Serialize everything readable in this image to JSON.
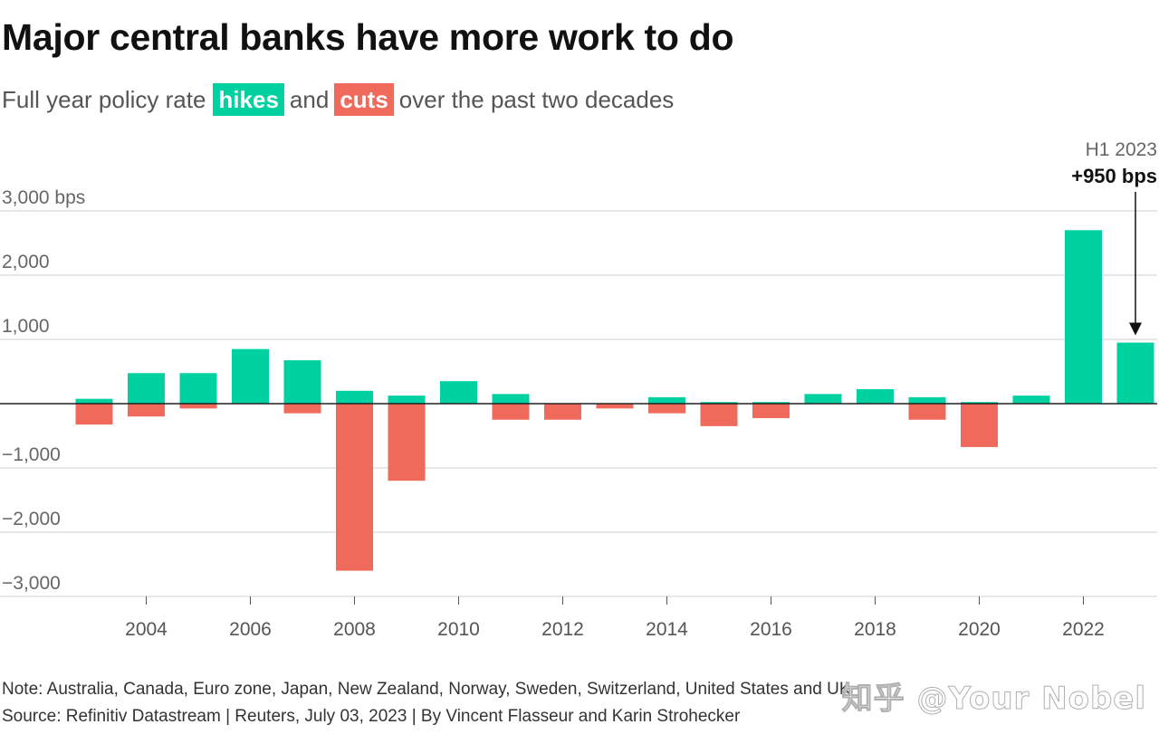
{
  "header": {
    "title": "Major central banks have more work to do",
    "subtitle_pre": "Full year policy rate",
    "hikes_label": "hikes",
    "and_label": "and",
    "cuts_label": "cuts",
    "subtitle_post": "over the past two decades"
  },
  "colors": {
    "hikes": "#00d1a0",
    "cuts": "#ef6a5a",
    "grid": "#cfcfcf",
    "axis": "#222222"
  },
  "chart_data": {
    "type": "bar",
    "stacked_diverging": true,
    "categories": [
      "2003",
      "2004",
      "2005",
      "2006",
      "2007",
      "2008",
      "2009",
      "2010",
      "2011",
      "2012",
      "2013",
      "2014",
      "2015",
      "2016",
      "2017",
      "2018",
      "2019",
      "2020",
      "2021",
      "2022",
      "H1 2023"
    ],
    "series": [
      {
        "name": "hikes",
        "values": [
          75,
          475,
          475,
          850,
          675,
          200,
          125,
          350,
          150,
          0,
          0,
          100,
          25,
          25,
          150,
          225,
          100,
          25,
          125,
          2700,
          950
        ]
      },
      {
        "name": "cuts",
        "values": [
          -325,
          -200,
          -75,
          0,
          -150,
          -2600,
          -1200,
          0,
          -250,
          -250,
          -75,
          -150,
          -350,
          -225,
          0,
          0,
          -250,
          -675,
          0,
          0,
          0
        ]
      }
    ],
    "ylim": [
      -3000,
      3000
    ],
    "yticks": [
      {
        "value": 3000,
        "label": "3,000 bps"
      },
      {
        "value": 2000,
        "label": "2,000"
      },
      {
        "value": 1000,
        "label": "1,000"
      },
      {
        "value": -1000,
        "label": "−1,000"
      },
      {
        "value": -2000,
        "label": "−2,000"
      },
      {
        "value": -3000,
        "label": "−3,000"
      }
    ],
    "xticks": [
      {
        "index": 1,
        "label": "2004"
      },
      {
        "index": 3,
        "label": "2006"
      },
      {
        "index": 5,
        "label": "2008"
      },
      {
        "index": 7,
        "label": "2010"
      },
      {
        "index": 9,
        "label": "2012"
      },
      {
        "index": 11,
        "label": "2014"
      },
      {
        "index": 13,
        "label": "2016"
      },
      {
        "index": 15,
        "label": "2018"
      },
      {
        "index": 17,
        "label": "2020"
      },
      {
        "index": 19,
        "label": "2022"
      }
    ],
    "annotation": {
      "index": 20,
      "label": "H1 2023",
      "value_label": "+950 bps"
    },
    "grid": true
  },
  "footer": {
    "note": "Note: Australia, Canada, Euro zone, Japan, New Zealand, Norway, Sweden, Switzerland, United States and UK",
    "source": "Source: Refinitiv Datastream | Reuters, July 03, 2023 | By Vincent Flasseur and Karin Strohecker"
  },
  "watermark": "知乎 @Your Nobel"
}
